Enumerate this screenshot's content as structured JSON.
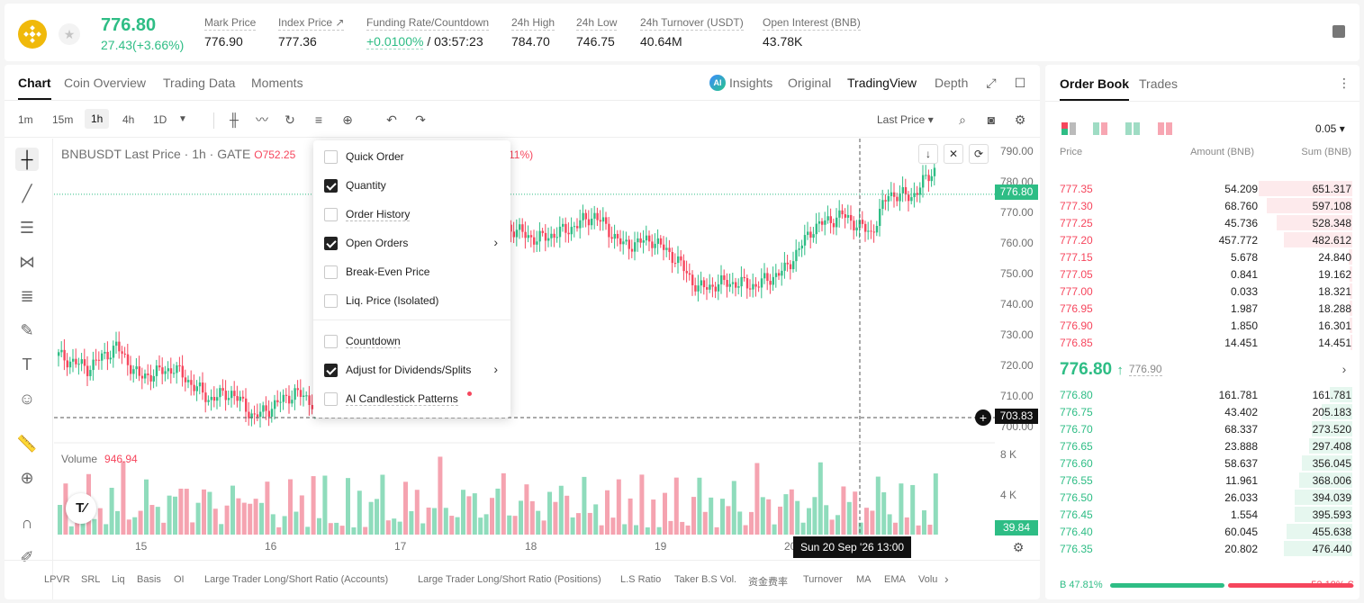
{
  "header": {
    "price": "776.80",
    "change": "27.43(+3.66%)",
    "stats": [
      {
        "label": "Mark Price",
        "value": "776.90"
      },
      {
        "label": "Index Price ↗",
        "value": "777.36"
      },
      {
        "label": "Funding Rate/Countdown",
        "value_green": "+0.0100%",
        "value": "/ 03:57:23"
      },
      {
        "label": "24h High",
        "value": "784.70"
      },
      {
        "label": "24h Low",
        "value": "746.75"
      },
      {
        "label": "24h Turnover (USDT)",
        "value": "40.64M"
      },
      {
        "label": "Open Interest (BNB)",
        "value": "43.78K"
      }
    ]
  },
  "chart_tabs": [
    "Chart",
    "Coin Overview",
    "Trading Data",
    "Moments"
  ],
  "view_tabs": [
    "Insights",
    "Original",
    "TradingView",
    "Depth"
  ],
  "ai_badge": "AI",
  "timeframes": [
    "1m",
    "15m",
    "1h",
    "4h",
    "1D"
  ],
  "last_price_select": "Last Price",
  "legend": {
    "symbol": "BNBUSDT Last Price · 1h · GATE",
    "o_label": "O",
    "open": "752.25",
    "pct": "11%)"
  },
  "volume_legend": {
    "label": "Volume",
    "value": "946.94"
  },
  "price_axis": {
    "ticks": [
      "790.00",
      "780.00",
      "770.00",
      "760.00",
      "750.00",
      "740.00",
      "730.00",
      "720.00",
      "710.00",
      "700.00"
    ],
    "current_tag": "776.80",
    "cursor_tag": "703.83",
    "vol_ticks": [
      "8 K",
      "4 K"
    ],
    "vol_tag": "39.84"
  },
  "dates": [
    "15",
    "16",
    "17",
    "18",
    "19",
    "20"
  ],
  "crosshair_label": "Sun 20 Sep '26   13:00",
  "tv_logo": "T⁄",
  "menu": [
    {
      "label": "Quick Order",
      "checked": false
    },
    {
      "label": "Quantity",
      "checked": true
    },
    {
      "label": "Order History",
      "checked": false
    },
    {
      "label": "Open Orders",
      "checked": true,
      "arrow": true
    },
    {
      "label": "Break-Even Price",
      "checked": false
    },
    {
      "label": "Liq. Price (Isolated)",
      "checked": false
    },
    {
      "label": "Countdown",
      "checked": false
    },
    {
      "label": "Adjust for Dividends/Splits",
      "checked": true,
      "arrow": true
    },
    {
      "label": "AI Candlestick Patterns",
      "checked": false,
      "dot": true
    }
  ],
  "indicators": [
    "LPVR",
    "SRL",
    "Liq",
    "Basis",
    "OI",
    "Large Trader Long/Short Ratio (Accounts)",
    "Large Trader Long/Short Ratio (Positions)",
    "L.S Ratio",
    "Taker B.S Vol.",
    "资金费率",
    "Turnover",
    "MA",
    "EMA",
    "Volu"
  ],
  "orderbook": {
    "tabs": [
      "Order Book",
      "Trades"
    ],
    "precision": "0.05",
    "headers": {
      "price": "Price",
      "amount": "Amount (BNB)",
      "sum": "Sum (BNB)"
    },
    "asks": [
      {
        "p": "777.35",
        "a": "54.209",
        "s": "651.317",
        "d": 0.37
      },
      {
        "p": "777.30",
        "a": "68.760",
        "s": "597.108",
        "d": 0.34
      },
      {
        "p": "777.25",
        "a": "45.736",
        "s": "528.348",
        "d": 0.3
      },
      {
        "p": "777.20",
        "a": "457.772",
        "s": "482.612",
        "d": 0.27
      },
      {
        "p": "777.15",
        "a": "5.678",
        "s": "24.840",
        "d": 0.015
      },
      {
        "p": "777.05",
        "a": "0.841",
        "s": "19.162",
        "d": 0.011
      },
      {
        "p": "777.00",
        "a": "0.033",
        "s": "18.321",
        "d": 0.01
      },
      {
        "p": "776.95",
        "a": "1.987",
        "s": "18.288",
        "d": 0.01
      },
      {
        "p": "776.90",
        "a": "1.850",
        "s": "16.301",
        "d": 0.009
      },
      {
        "p": "776.85",
        "a": "14.451",
        "s": "14.451",
        "d": 0.008
      }
    ],
    "mid_price": "776.80",
    "mid_arrow": "↑",
    "mark": "776.90",
    "mid_chevron": "›",
    "bids": [
      {
        "p": "776.80",
        "a": "161.781",
        "s": "161.781",
        "d": 0.09
      },
      {
        "p": "776.75",
        "a": "43.402",
        "s": "205.183",
        "d": 0.12
      },
      {
        "p": "776.70",
        "a": "68.337",
        "s": "273.520",
        "d": 0.16
      },
      {
        "p": "776.65",
        "a": "23.888",
        "s": "297.408",
        "d": 0.17
      },
      {
        "p": "776.60",
        "a": "58.637",
        "s": "356.045",
        "d": 0.2
      },
      {
        "p": "776.55",
        "a": "11.961",
        "s": "368.006",
        "d": 0.21
      },
      {
        "p": "776.50",
        "a": "26.033",
        "s": "394.039",
        "d": 0.23
      },
      {
        "p": "776.45",
        "a": "1.554",
        "s": "395.593",
        "d": 0.23
      },
      {
        "p": "776.40",
        "a": "60.045",
        "s": "455.638",
        "d": 0.26
      },
      {
        "p": "776.35",
        "a": "20.802",
        "s": "476.440",
        "d": 0.27
      }
    ],
    "buy_ratio": "B 47.81%",
    "sell_ratio": "52.19% S",
    "buy_fraction": 0.4781
  },
  "colors": {
    "up": "#2ebd85",
    "down": "#f6465d"
  }
}
